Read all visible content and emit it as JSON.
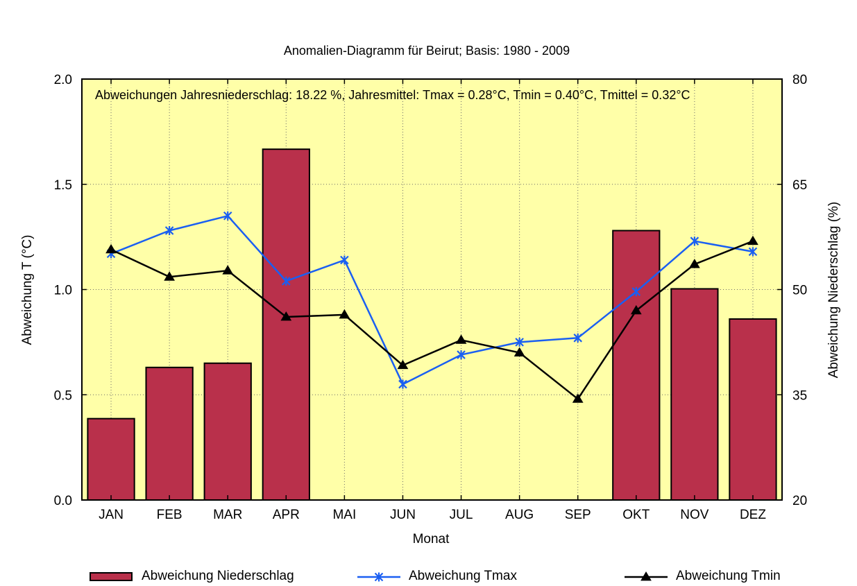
{
  "chart_data": {
    "type": "bar+line",
    "title": "Anomalien-Diagramm für Beirut; Basis: 1980 - 2009",
    "annotation": "Abweichungen Jahresniederschlag: 18.22 %,  Jahresmittel: Tmax = 0.28°C,  Tmin = 0.40°C,  Tmittel = 0.32°C",
    "xlabel": "Monat",
    "ylabel_left": "Abweichung T (°C)",
    "ylabel_right": "Abweichung Niederschlag (%)",
    "ylim_left": [
      0.0,
      2.0
    ],
    "ylim_right": [
      20,
      80
    ],
    "yticks_left": [
      "0.0",
      "0.5",
      "1.0",
      "1.5",
      "2.0"
    ],
    "yticks_right": [
      "20",
      "35",
      "50",
      "65",
      "80"
    ],
    "categories": [
      "JAN",
      "FEB",
      "MAR",
      "APR",
      "MAI",
      "JUN",
      "JUL",
      "AUG",
      "SEP",
      "OKT",
      "NOV",
      "DEZ"
    ],
    "grid": true,
    "legend_position": "bottom",
    "series": [
      {
        "name": "Abweichung Niederschlag",
        "kind": "bar",
        "axis": "right",
        "color": "#b9304b",
        "values": [
          31.6,
          38.9,
          39.5,
          70.0,
          null,
          null,
          null,
          null,
          null,
          58.4,
          50.1,
          45.8
        ]
      },
      {
        "name": "Abweichung Tmax",
        "kind": "line",
        "marker": "star",
        "axis": "left",
        "color": "#1a5ff2",
        "values": [
          1.17,
          1.28,
          1.35,
          1.04,
          1.14,
          0.55,
          0.69,
          0.75,
          0.77,
          0.99,
          1.23,
          1.18
        ]
      },
      {
        "name": "Abweichung Tmin",
        "kind": "line",
        "marker": "triangle",
        "axis": "left",
        "color": "#000000",
        "values": [
          1.19,
          1.06,
          1.09,
          0.87,
          0.88,
          0.64,
          0.76,
          0.7,
          0.48,
          0.9,
          1.12,
          1.23
        ]
      }
    ]
  },
  "colors": {
    "plot_background": "#ffffa8",
    "grid": "#6b6b6b",
    "bar_fill": "#b9304b",
    "tmax_line": "#1a5ff2",
    "tmin_line": "#000000"
  }
}
